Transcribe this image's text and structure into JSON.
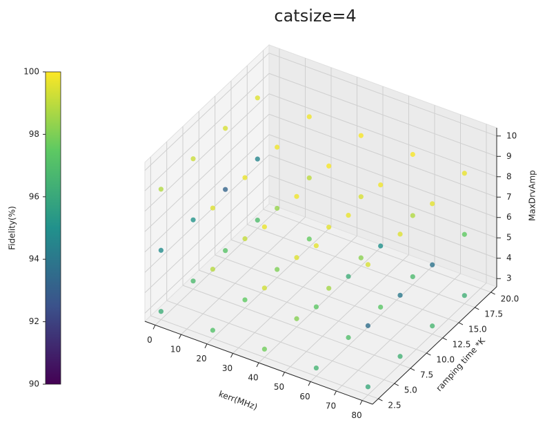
{
  "chart_data": {
    "type": "scatter3d",
    "title": "catsize=4",
    "xlabel": "kerr(MHz)",
    "ylabel": "ramping time *K",
    "zlabel": "MaxDrvAmp",
    "colorbar_label": "Fidelity(%)",
    "colormap": "viridis",
    "x": [
      0,
      20,
      40,
      60,
      80,
      0,
      20,
      40,
      60,
      80,
      0,
      20,
      40,
      60,
      80,
      0,
      20,
      40,
      60,
      80,
      0,
      20,
      40,
      60,
      80,
      0,
      20,
      40,
      60,
      80,
      0,
      20,
      40,
      60,
      80,
      0,
      20,
      40,
      60,
      80,
      0,
      20,
      40,
      60,
      80,
      0,
      20,
      40,
      60,
      80,
      0,
      20,
      40,
      60,
      80,
      0,
      20,
      40,
      60,
      80
    ],
    "y": [
      2.5,
      2.5,
      2.5,
      2.5,
      2.5,
      7.5,
      7.5,
      7.5,
      7.5,
      7.5,
      12.5,
      12.5,
      12.5,
      12.5,
      12.5,
      17.5,
      17.5,
      17.5,
      17.5,
      17.5,
      2.5,
      2.5,
      2.5,
      2.5,
      2.5,
      7.5,
      7.5,
      7.5,
      7.5,
      7.5,
      12.5,
      12.5,
      12.5,
      12.5,
      12.5,
      17.5,
      17.5,
      17.5,
      17.5,
      17.5,
      2.5,
      2.5,
      2.5,
      2.5,
      2.5,
      7.5,
      7.5,
      7.5,
      7.5,
      7.5,
      12.5,
      12.5,
      12.5,
      12.5,
      12.5,
      17.5,
      17.5,
      17.5,
      17.5,
      17.5
    ],
    "z": [
      3,
      3,
      3,
      3,
      3,
      3,
      3,
      3,
      3,
      3,
      3,
      3,
      3,
      3,
      3,
      3,
      3,
      3,
      3,
      3,
      6,
      6,
      6,
      6,
      6,
      6,
      6,
      6,
      6,
      6,
      6,
      6,
      6,
      6,
      6,
      6,
      6,
      6,
      6,
      6,
      9,
      9,
      9,
      9,
      9,
      9,
      9,
      9,
      9,
      9,
      9,
      9,
      9,
      9,
      9,
      9,
      9,
      9,
      9,
      9
    ],
    "values": [
      96.2,
      97.1,
      97.8,
      96.5,
      96.0,
      96.8,
      97.5,
      98.1,
      97.0,
      96.4,
      97.2,
      98.0,
      98.6,
      97.3,
      96.6,
      96.9,
      97.6,
      98.2,
      96.8,
      96.3,
      94.8,
      98.9,
      99.3,
      97.4,
      93.6,
      95.1,
      99.1,
      99.5,
      96.2,
      94.0,
      93.2,
      98.4,
      99.6,
      95.0,
      93.8,
      94.5,
      99.0,
      99.4,
      98.8,
      97.5,
      98.8,
      99.5,
      99.7,
      99.6,
      99.4,
      99.2,
      99.7,
      99.8,
      99.7,
      99.5,
      99.4,
      99.8,
      99.9,
      99.8,
      99.6,
      99.5,
      99.8,
      99.9,
      99.9,
      99.7
    ],
    "xlim": [
      -4,
      84
    ],
    "ylim": [
      1.6,
      20.9
    ],
    "zlim": [
      2.6,
      10.4
    ],
    "xticks": [
      0,
      10,
      20,
      30,
      40,
      50,
      60,
      70,
      80
    ],
    "yticks": [
      2.5,
      {
        "value": 5,
        "label": "5.0"
      },
      7.5,
      {
        "value": 10,
        "label": "10.0"
      },
      12.5,
      {
        "value": 15,
        "label": "15.0"
      },
      17.5,
      {
        "value": 20,
        "label": "20.0"
      }
    ],
    "zticks": [
      3,
      4,
      5,
      6,
      7,
      8,
      9,
      10
    ],
    "clim": [
      90,
      100
    ],
    "cticks": [
      90,
      92,
      94,
      96,
      98,
      100
    ],
    "grid": true
  }
}
